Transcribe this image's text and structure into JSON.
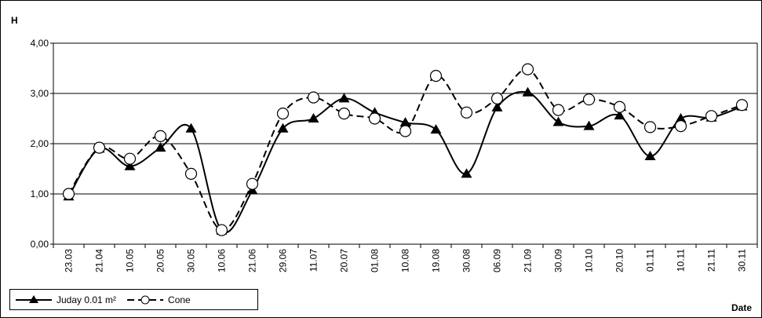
{
  "chart_data": {
    "type": "line",
    "y_label": "H",
    "x_label": "Date",
    "categories": [
      "23.03",
      "21.04",
      "10.05",
      "20.05",
      "30.05",
      "10.06",
      "21.06",
      "29.06",
      "11.07",
      "20.07",
      "01.08",
      "10.08",
      "19.08",
      "30.08",
      "06.09",
      "21.09",
      "30.09",
      "10.10",
      "20.10",
      "01.11",
      "10.11",
      "21.11",
      "30.11"
    ],
    "series": [
      {
        "name": "Juday 0.01 m²",
        "color": "#000000",
        "marker": "triangle",
        "dash": "solid",
        "values": [
          0.95,
          1.9,
          1.55,
          1.92,
          2.3,
          0.27,
          1.07,
          2.3,
          2.5,
          2.9,
          2.62,
          2.42,
          2.28,
          1.4,
          2.72,
          3.02,
          2.43,
          2.35,
          2.56,
          1.75,
          2.5,
          2.52,
          2.74
        ]
      },
      {
        "name": "Cone",
        "color": "#000000",
        "marker": "circle",
        "dash": "dashed",
        "values": [
          1.0,
          1.92,
          1.7,
          2.15,
          1.4,
          0.28,
          1.2,
          2.6,
          2.92,
          2.6,
          2.5,
          2.25,
          3.35,
          2.62,
          2.9,
          3.48,
          2.67,
          2.88,
          2.73,
          2.33,
          2.35,
          2.55,
          2.77
        ]
      }
    ],
    "ylim": [
      0,
      4
    ],
    "yticks": [
      {
        "value": 0,
        "label": "0,00"
      },
      {
        "value": 1,
        "label": "1,00"
      },
      {
        "value": 2,
        "label": "2,00"
      },
      {
        "value": 3,
        "label": "3,00"
      },
      {
        "value": 4,
        "label": "4,00"
      }
    ],
    "grid": true,
    "legend": "bottom-left"
  }
}
